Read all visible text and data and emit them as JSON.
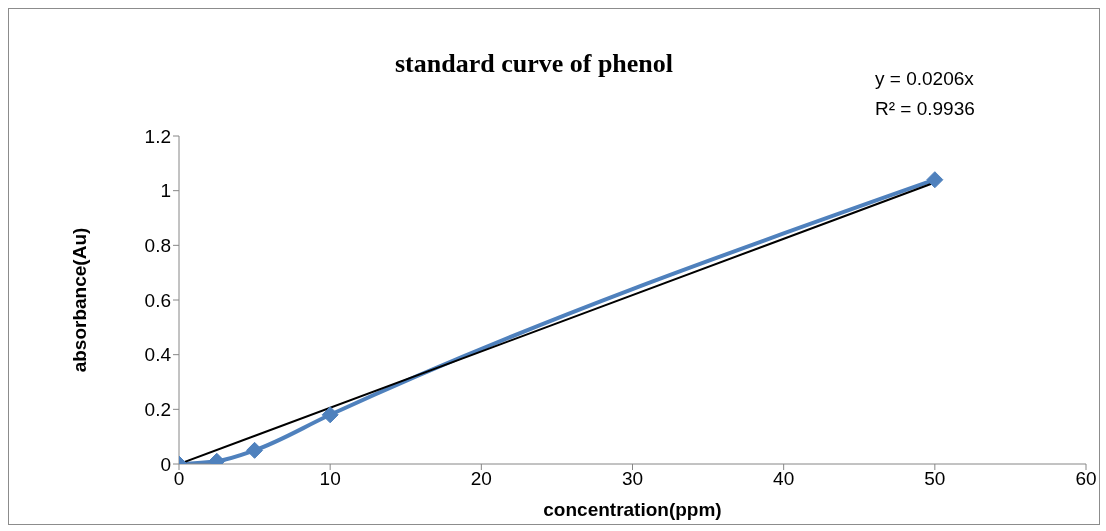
{
  "chart_data": {
    "type": "line",
    "title": "standard curve of phenol",
    "xlabel": "concentration(ppm)",
    "ylabel": "absorbance(Au)",
    "annotations": [
      "y = 0.0206x",
      "R² = 0.9936"
    ],
    "xlim": [
      0,
      60
    ],
    "xticks": [
      0,
      10,
      20,
      30,
      40,
      50,
      60
    ],
    "ylim": [
      0,
      1.2
    ],
    "yticks": [
      0,
      0.2,
      0.4,
      0.6,
      0.8,
      1,
      1.2
    ],
    "legend": false,
    "series": [
      {
        "color": "#4f81bd",
        "marker": "diamond",
        "x": [
          0,
          2.5,
          5,
          10,
          50
        ],
        "values": [
          0,
          0.01,
          0.05,
          0.18,
          1.04
        ]
      },
      {
        "color": "#000000",
        "marker": "none",
        "x": [
          0,
          50
        ],
        "values": [
          0,
          1.03
        ]
      }
    ]
  }
}
